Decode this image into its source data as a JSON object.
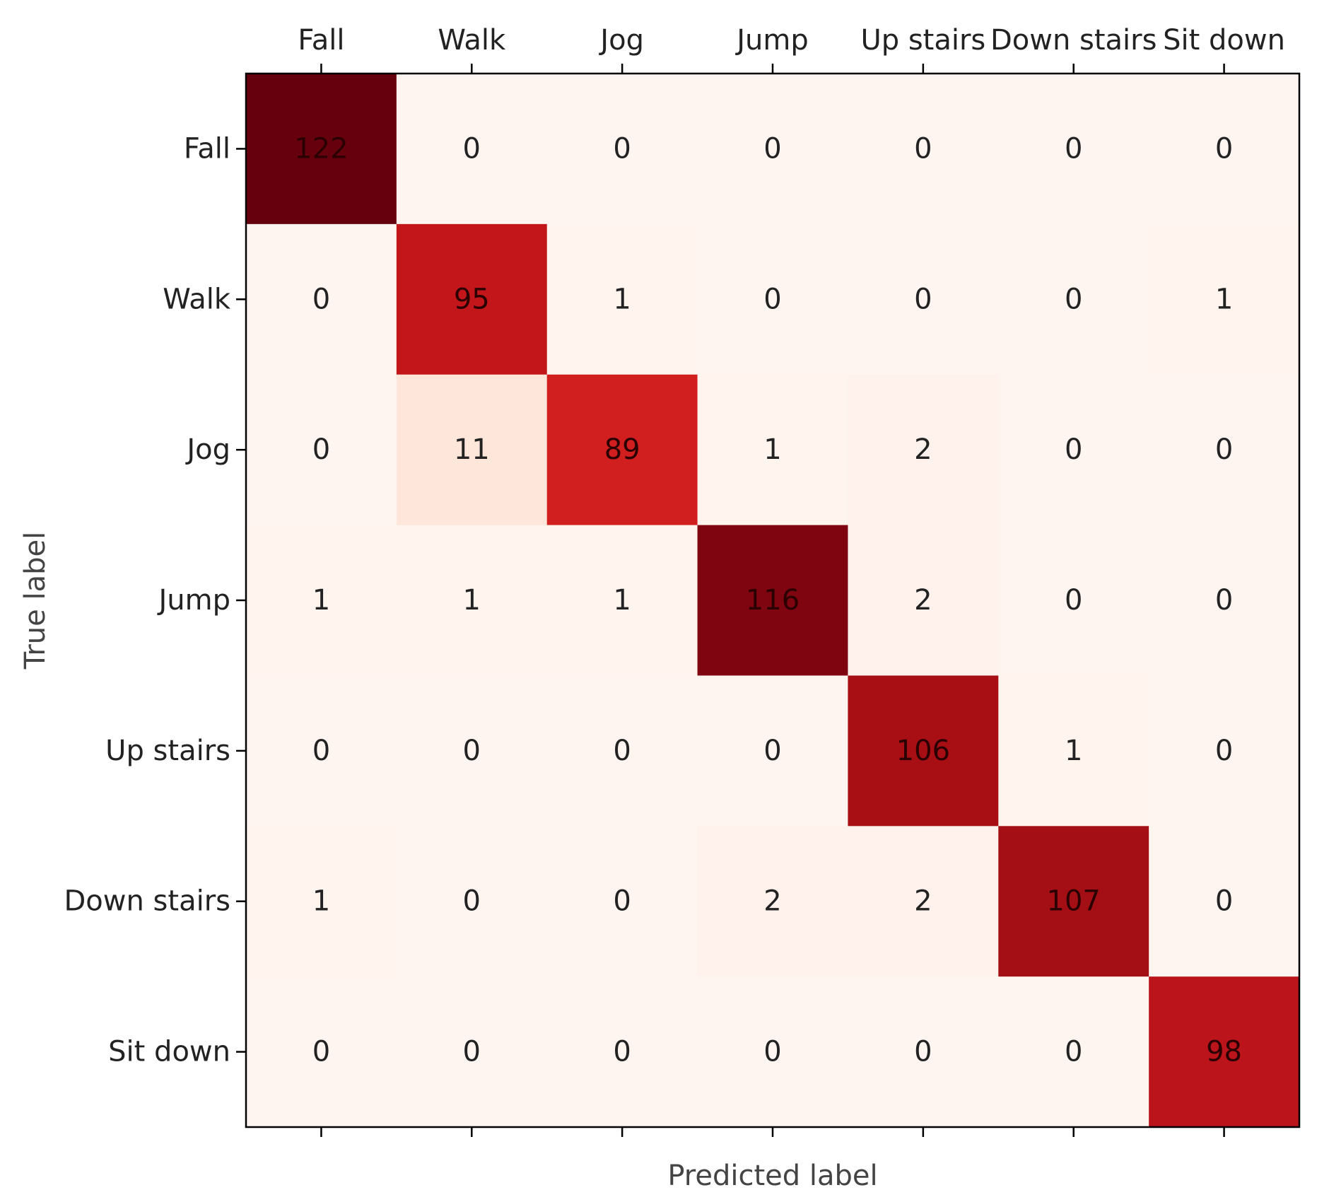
{
  "chart_data": {
    "type": "heatmap",
    "title": "",
    "xlabel": "Predicted label",
    "ylabel": "True label",
    "x_categories": [
      "Fall",
      "Walk",
      "Jog",
      "Jump",
      "Up stairs",
      "Down stairs",
      "Sit down"
    ],
    "y_categories": [
      "Fall",
      "Walk",
      "Jog",
      "Jump",
      "Up stairs",
      "Down stairs",
      "Sit down"
    ],
    "values": [
      [
        122,
        0,
        0,
        0,
        0,
        0,
        0
      ],
      [
        0,
        95,
        1,
        0,
        0,
        0,
        1
      ],
      [
        0,
        11,
        89,
        1,
        2,
        0,
        0
      ],
      [
        1,
        1,
        1,
        116,
        2,
        0,
        0
      ],
      [
        0,
        0,
        0,
        0,
        106,
        1,
        0
      ],
      [
        1,
        0,
        0,
        2,
        2,
        107,
        0
      ],
      [
        0,
        0,
        0,
        0,
        0,
        0,
        98
      ]
    ],
    "x_tick_position": "top",
    "colormap": "Reds",
    "grid": false
  }
}
